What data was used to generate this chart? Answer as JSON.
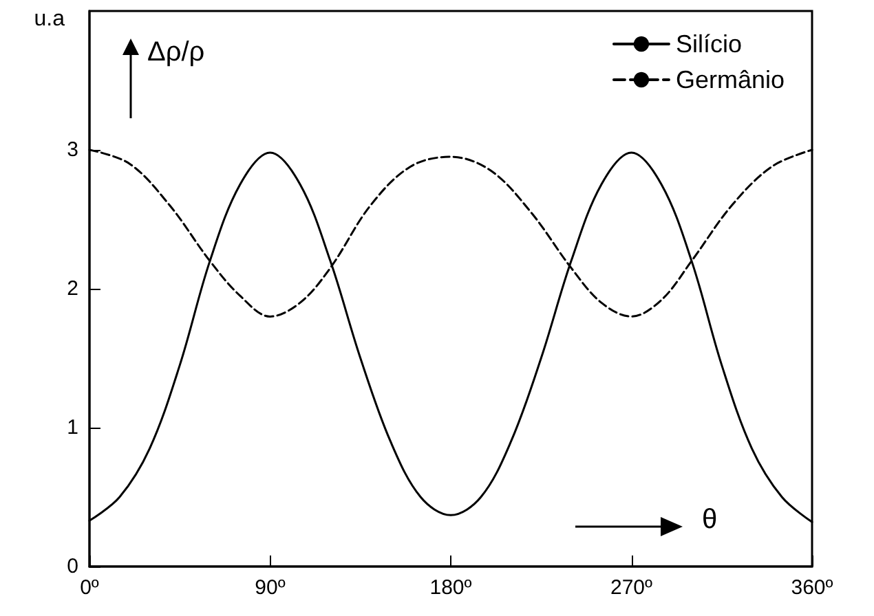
{
  "chart_data": {
    "type": "line",
    "ylabel": "u.a",
    "annotations": [
      "Δρ/ρ",
      "θ"
    ],
    "xlim": [
      0,
      360
    ],
    "ylim": [
      0,
      4
    ],
    "xticks": [
      {
        "value": 0,
        "label": "0º"
      },
      {
        "value": 90,
        "label": "90º"
      },
      {
        "value": 180,
        "label": "180º"
      },
      {
        "value": 270,
        "label": "270º"
      },
      {
        "value": 360,
        "label": "360º"
      }
    ],
    "yticks": [
      0,
      1,
      2,
      3
    ],
    "grid": false,
    "legend": "top right",
    "marker": "none",
    "series": [
      {
        "name": "Silício",
        "color": "#000000",
        "line_style": "solid",
        "x": [
          0,
          15,
          30,
          45,
          60,
          75,
          90,
          105,
          120,
          135,
          150,
          165,
          180,
          195,
          210,
          225,
          240,
          255,
          270,
          285,
          300,
          315,
          330,
          345,
          360
        ],
        "values": [
          0.33,
          0.5,
          0.85,
          1.45,
          2.2,
          2.75,
          2.98,
          2.75,
          2.2,
          1.5,
          0.9,
          0.5,
          0.37,
          0.5,
          0.9,
          1.5,
          2.2,
          2.75,
          2.98,
          2.75,
          2.2,
          1.45,
          0.85,
          0.5,
          0.32
        ]
      },
      {
        "name": "Germânio",
        "color": "#000000",
        "line_style": "dashed",
        "x": [
          0,
          20,
          40,
          60,
          75,
          90,
          105,
          120,
          140,
          160,
          180,
          200,
          220,
          240,
          255,
          270,
          285,
          300,
          320,
          340,
          360
        ],
        "values": [
          3.0,
          2.9,
          2.6,
          2.2,
          1.95,
          1.8,
          1.9,
          2.15,
          2.6,
          2.88,
          2.95,
          2.85,
          2.55,
          2.15,
          1.9,
          1.8,
          1.92,
          2.2,
          2.6,
          2.88,
          3.0
        ]
      }
    ]
  }
}
